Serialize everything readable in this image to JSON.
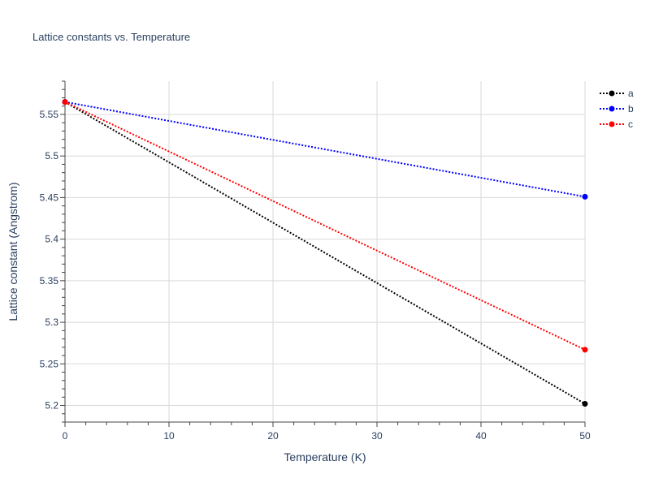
{
  "chart_data": {
    "type": "line",
    "title": "Lattice constants vs. Temperature",
    "xlabel": "Temperature (K)",
    "ylabel": "Lattice constant (Angstrom)",
    "xlim": [
      0,
      50
    ],
    "ylim": [
      5.18,
      5.59
    ],
    "xticks": [
      0,
      10,
      20,
      30,
      40,
      50
    ],
    "xtick_labels": [
      "0",
      "10",
      "20",
      "30",
      "40",
      "50"
    ],
    "yticks": [
      5.2,
      5.25,
      5.3,
      5.35,
      5.4,
      5.45,
      5.5,
      5.55
    ],
    "ytick_labels": [
      "5.2",
      "5.25",
      "5.3",
      "5.35",
      "5.4",
      "5.45",
      "5.5",
      "5.55"
    ],
    "grid": true,
    "legend_position": "top-right",
    "line_style": "dotted",
    "series": [
      {
        "name": "a",
        "color": "#000000",
        "x": [
          0,
          50
        ],
        "y": [
          5.565,
          5.202
        ]
      },
      {
        "name": "b",
        "color": "#0000ff",
        "x": [
          0,
          50
        ],
        "y": [
          5.565,
          5.451
        ]
      },
      {
        "name": "c",
        "color": "#ff0000",
        "x": [
          0,
          50
        ],
        "y": [
          5.565,
          5.267
        ]
      }
    ]
  }
}
